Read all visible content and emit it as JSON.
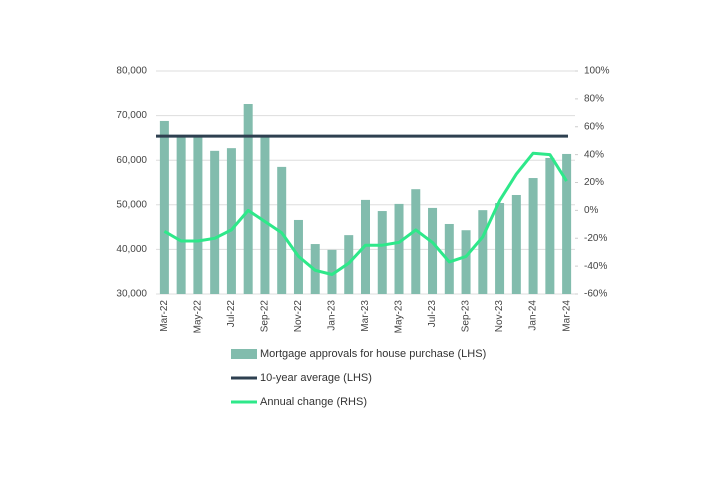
{
  "chart_data": {
    "type": "bar-line",
    "categories": [
      "Mar-22",
      null,
      "May-22",
      null,
      "Jul-22",
      null,
      "Sep-22",
      null,
      "Nov-22",
      null,
      "Jan-23",
      null,
      "Mar-23",
      null,
      "May-23",
      null,
      "Jul-23",
      null,
      "Sep-23",
      null,
      "Nov-23",
      null,
      "Jan-24",
      null,
      "Mar-24"
    ],
    "series": [
      {
        "name": "Mortgage approvals for house purchase (LHS)",
        "kind": "bar",
        "color": "#82bcad",
        "values": [
          68800,
          65200,
          65400,
          62100,
          62700,
          72600,
          65200,
          58500,
          46600,
          41200,
          39900,
          43200,
          51100,
          48600,
          50200,
          53500,
          49300,
          45700,
          44300,
          48800,
          50400,
          52200,
          56000,
          60500,
          61400
        ]
      },
      {
        "name": "10-year average (LHS)",
        "kind": "hline",
        "color": "#2e4050",
        "value": 65400
      },
      {
        "name": "Annual change (RHS)",
        "kind": "line",
        "axis": "y2",
        "color": "#2ee88a",
        "values": [
          -15,
          -22,
          -22,
          -20,
          -14,
          0,
          -8,
          -16,
          -33,
          -43,
          -46,
          -38,
          -25,
          -25,
          -23,
          -14,
          -23,
          -37,
          -33,
          -19,
          7,
          26,
          41,
          40,
          21
        ]
      }
    ],
    "ylim": [
      30000,
      80000
    ],
    "yticks": [
      {
        "value": 30000,
        "label": "30,000"
      },
      {
        "value": 40000,
        "label": "40,000"
      },
      {
        "value": 50000,
        "label": "50,000"
      },
      {
        "value": 60000,
        "label": "60,000"
      },
      {
        "value": 70000,
        "label": "70,000"
      },
      {
        "value": 80000,
        "label": "80,000"
      }
    ],
    "y2lim": [
      -60,
      100
    ],
    "y2ticks": [
      {
        "value": -60,
        "label": "-60%"
      },
      {
        "value": -40,
        "label": "-40%"
      },
      {
        "value": -20,
        "label": "-20%"
      },
      {
        "value": 0,
        "label": "0%"
      },
      {
        "value": 20,
        "label": "20%"
      },
      {
        "value": 40,
        "label": "40%"
      },
      {
        "value": 60,
        "label": "60%"
      },
      {
        "value": 80,
        "label": "80%"
      },
      {
        "value": 100,
        "label": "100%"
      }
    ],
    "grid": true
  }
}
